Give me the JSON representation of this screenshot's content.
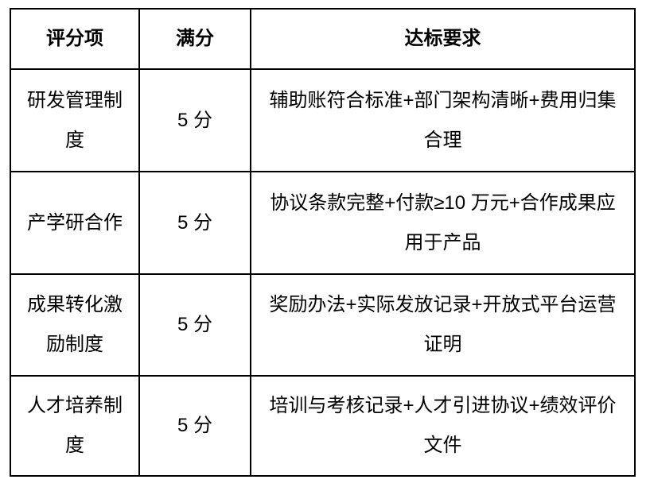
{
  "colors": {
    "border": "#000000",
    "text": "#000000",
    "background": "#ffffff"
  },
  "table": {
    "headers": {
      "item": "评分项",
      "score": "满分",
      "requirement": "达标要求"
    },
    "rows": [
      {
        "item": "研发管理制\n度",
        "score": "5 分",
        "requirement": "辅助账符合标准+部门架构清晰+费用归集\n合理"
      },
      {
        "item": "产学研合作",
        "score": "5 分",
        "requirement": "协议条款完整+付款≥10 万元+合作成果应\n用于产品"
      },
      {
        "item": "成果转化激\n励制度",
        "score": "5 分",
        "requirement": "奖励办法+实际发放记录+开放式平台运营\n证明"
      },
      {
        "item": "人才培养制\n度",
        "score": "5 分",
        "requirement": "培训与考核记录+人才引进协议+绩效评价\n文件"
      }
    ]
  }
}
